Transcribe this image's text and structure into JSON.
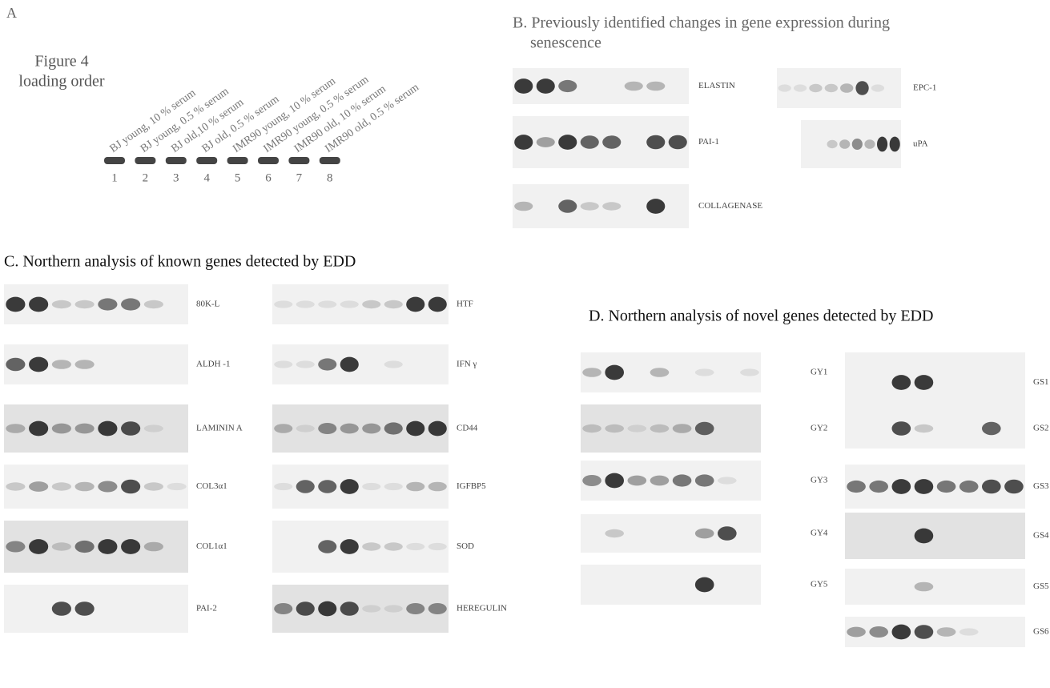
{
  "panel_a": {
    "letter": "A",
    "caption": [
      "Figure 4",
      "loading order"
    ],
    "lanes": [
      {
        "number": "1",
        "sample": "BJ young, 10 % serum"
      },
      {
        "number": "2",
        "sample": "BJ young, 0.5 % serum"
      },
      {
        "number": "3",
        "sample": "BJ old,10 % serum"
      },
      {
        "number": "4",
        "sample": "BJ old, 0.5 % serum"
      },
      {
        "number": "5",
        "sample": "IMR90 young, 10 % serum"
      },
      {
        "number": "6",
        "sample": "IMR90 young, 0.5 % serum"
      },
      {
        "number": "7",
        "sample": "IMR90 old, 10 % serum"
      },
      {
        "number": "8",
        "sample": "IMR90 old, 0.5 % serum"
      }
    ]
  },
  "panel_b": {
    "title": [
      "B. Previously identified changes in gene expression during",
      "senescence"
    ],
    "genes": [
      "ELASTIN",
      "EPC-1",
      "PAI-1",
      "uPA",
      "COLLAGENASE"
    ]
  },
  "panel_c": {
    "title": "C. Northern analysis of known genes detected by EDD",
    "left": [
      "80K-L",
      "ALDH -1",
      "LAMININ A",
      "COL3α1",
      "COL1α1",
      "PAI-2"
    ],
    "right": [
      "HTF",
      "IFN γ",
      "CD44",
      "IGFBP5",
      "SOD",
      "HEREGULIN"
    ]
  },
  "panel_d": {
    "title": "D. Northern analysis of novel genes detected by EDD",
    "left": [
      "GY1",
      "GY2",
      "GY3",
      "GY4",
      "GY5"
    ],
    "right": [
      "GS1",
      "GS2",
      "GS3",
      "GS4",
      "GS5",
      "GS6"
    ]
  }
}
